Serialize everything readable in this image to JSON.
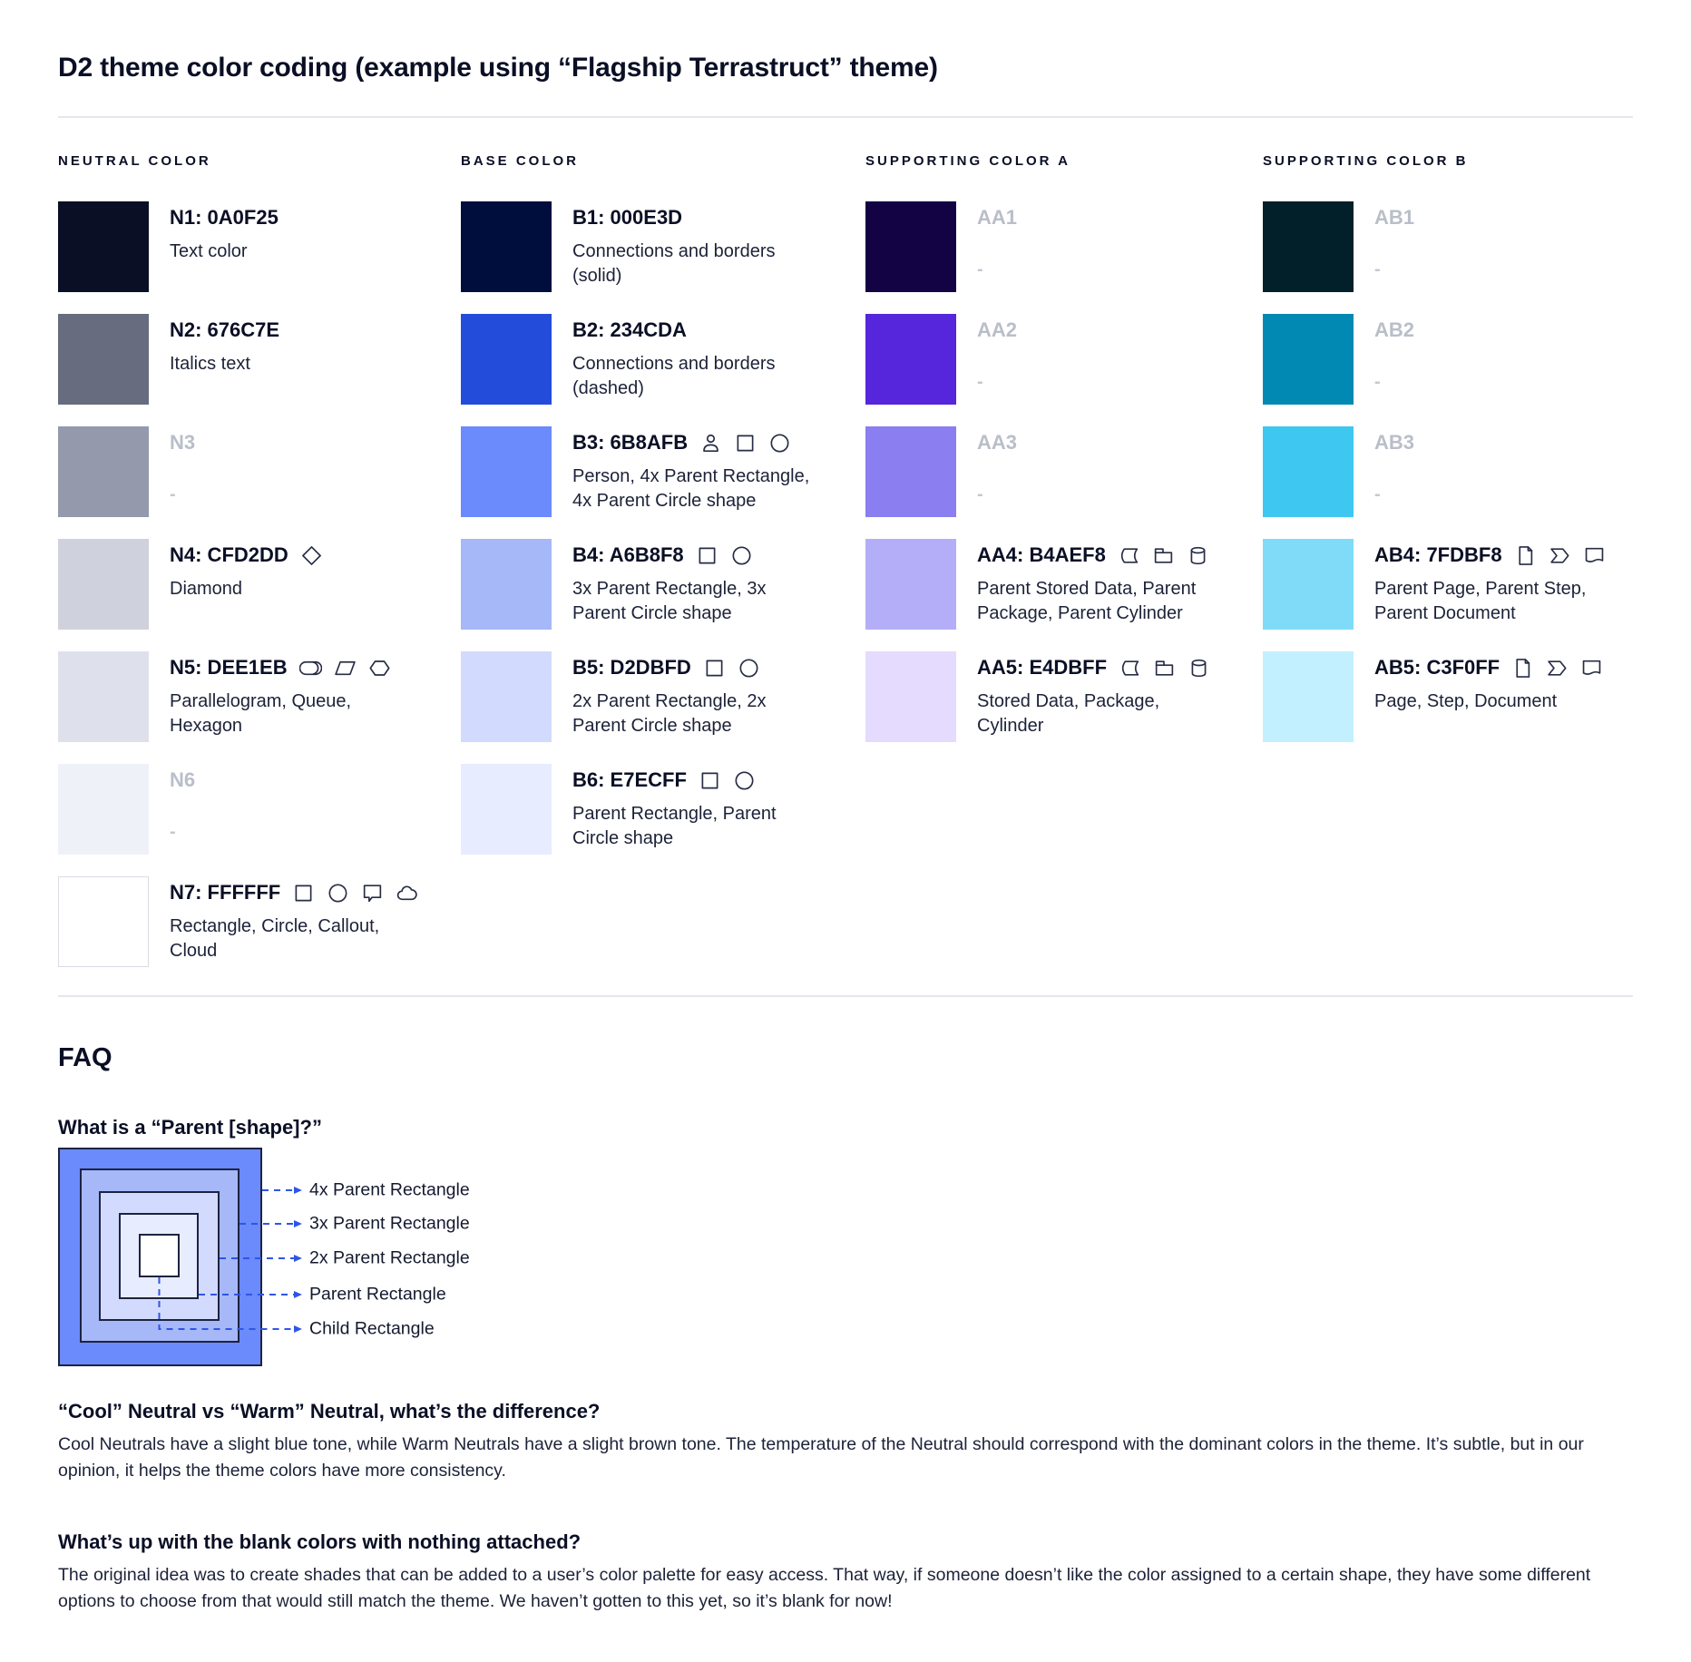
{
  "title": "D2 theme color coding (example using “Flagship Terrastruct” theme)",
  "colors": {
    "text": "#0A0F25",
    "gray_label": "#B9BEC9",
    "divider": "#E4E7ED",
    "leader_blue": "#2F55E6"
  },
  "columns": [
    {
      "header": "NEUTRAL COLOR",
      "items": [
        {
          "label": "N1: 0A0F25",
          "hex": "#0A0F25",
          "desc": "Text color",
          "icons": [],
          "blank": false,
          "border": false
        },
        {
          "label": "N2: 676C7E",
          "hex": "#676C7E",
          "desc": "Italics text",
          "icons": [],
          "blank": false,
          "border": false
        },
        {
          "label": "N3",
          "hex": "#9499AB",
          "desc": "-",
          "icons": [],
          "blank": true,
          "border": false
        },
        {
          "label": "N4: CFD2DD",
          "hex": "#CFD2DD",
          "desc": "Diamond",
          "icons": [
            "diamond"
          ],
          "blank": false,
          "border": false
        },
        {
          "label": "N5: DEE1EB",
          "hex": "#DEE1EB",
          "desc": "Parallelogram, Queue, Hexagon",
          "icons": [
            "queue",
            "parallelogram",
            "hexagon"
          ],
          "blank": false,
          "border": false
        },
        {
          "label": "N6",
          "hex": "#EEF1F8",
          "desc": "-",
          "icons": [],
          "blank": true,
          "border": false
        },
        {
          "label": "N7: FFFFFF",
          "hex": "#FFFFFF",
          "desc": "Rectangle, Circle, Callout, Cloud",
          "icons": [
            "square",
            "circle",
            "callout",
            "cloud"
          ],
          "blank": false,
          "border": true
        }
      ]
    },
    {
      "header": "BASE COLOR",
      "items": [
        {
          "label": "B1: 000E3D",
          "hex": "#000E3D",
          "desc": "Connections and borders (solid)",
          "icons": [],
          "blank": false,
          "border": false
        },
        {
          "label": "B2: 234CDA",
          "hex": "#234CDA",
          "desc": "Connections and borders (dashed)",
          "icons": [],
          "blank": false,
          "border": false
        },
        {
          "label": "B3: 6B8AFB",
          "hex": "#6B8AFB",
          "desc": "Person, 4x Parent Rectangle, 4x Parent Circle shape",
          "icons": [
            "person",
            "square",
            "circle"
          ],
          "blank": false,
          "border": false
        },
        {
          "label": "B4: A6B8F8",
          "hex": "#A6B8F8",
          "desc": "3x Parent Rectangle, 3x Parent Circle shape",
          "icons": [
            "square",
            "circle"
          ],
          "blank": false,
          "border": false
        },
        {
          "label": "B5: D2DBFD",
          "hex": "#D2DBFD",
          "desc": "2x Parent Rectangle, 2x Parent Circle shape",
          "icons": [
            "square",
            "circle"
          ],
          "blank": false,
          "border": false
        },
        {
          "label": "B6: E7ECFF",
          "hex": "#E7ECFF",
          "desc": "Parent Rectangle, Parent Circle shape",
          "icons": [
            "square",
            "circle"
          ],
          "blank": false,
          "border": false
        }
      ]
    },
    {
      "header": "SUPPORTING COLOR A",
      "items": [
        {
          "label": "AA1",
          "hex": "#130345",
          "desc": "-",
          "icons": [],
          "blank": true,
          "border": false
        },
        {
          "label": "AA2",
          "hex": "#5526DB",
          "desc": "-",
          "icons": [],
          "blank": true,
          "border": false
        },
        {
          "label": "AA3",
          "hex": "#8A7EF0",
          "desc": "-",
          "icons": [],
          "blank": true,
          "border": false
        },
        {
          "label": "AA4: B4AEF8",
          "hex": "#B4AEF8",
          "desc": "Parent Stored Data, Parent Package,  Parent Cylinder",
          "icons": [
            "stored-data",
            "package",
            "cylinder"
          ],
          "blank": false,
          "border": false
        },
        {
          "label": "AA5: E4DBFF",
          "hex": "#E4DBFF",
          "desc": "Stored Data, Package, Cylinder",
          "icons": [
            "stored-data",
            "package",
            "cylinder"
          ],
          "blank": false,
          "border": false
        }
      ]
    },
    {
      "header": "SUPPORTING COLOR B",
      "items": [
        {
          "label": "AB1",
          "hex": "#02202A",
          "desc": "-",
          "icons": [],
          "blank": true,
          "border": false
        },
        {
          "label": "AB2",
          "hex": "#0289B3",
          "desc": "-",
          "icons": [],
          "blank": true,
          "border": false
        },
        {
          "label": "AB3",
          "hex": "#3EC7F0",
          "desc": "-",
          "icons": [],
          "blank": true,
          "border": false
        },
        {
          "label": "AB4: 7FDBF8",
          "hex": "#7FDBF8",
          "desc": "Parent Page, Parent Step, Parent Document",
          "icons": [
            "page",
            "step",
            "document"
          ],
          "blank": false,
          "border": false
        },
        {
          "label": "AB5: C3F0FF",
          "hex": "#C3F0FF",
          "desc": "Page, Step, Document",
          "icons": [
            "page",
            "step",
            "document"
          ],
          "blank": false,
          "border": false
        }
      ]
    }
  ],
  "faq": {
    "title": "FAQ",
    "q1": "What is a “Parent [shape]?”",
    "diagram": {
      "labels": [
        "4x Parent Rectangle",
        "3x Parent Rectangle",
        "2x Parent Rectangle",
        "Parent Rectangle",
        "Child Rectangle"
      ],
      "fills": [
        "#6B8AFB",
        "#A6B8F8",
        "#D2DBFD",
        "#E7ECFF",
        "#FFFFFF"
      ]
    },
    "q2": "“Cool” Neutral vs “Warm” Neutral, what’s the difference?",
    "a2": "Cool Neutrals have a slight blue tone, while Warm Neutrals have a slight brown tone. The temperature of the Neutral should correspond with the dominant colors in the theme. It’s subtle, but in our opinion, it helps the theme colors have more consistency.",
    "q3": "What’s up with the blank colors with nothing attached?",
    "a3": "The original idea was to create shades that can be added to a user’s color palette for easy access. That way, if someone doesn’t like the color assigned to a certain shape, they have some different options to choose from that would still match the theme. We haven’t gotten to this yet, so it’s blank for now!"
  }
}
